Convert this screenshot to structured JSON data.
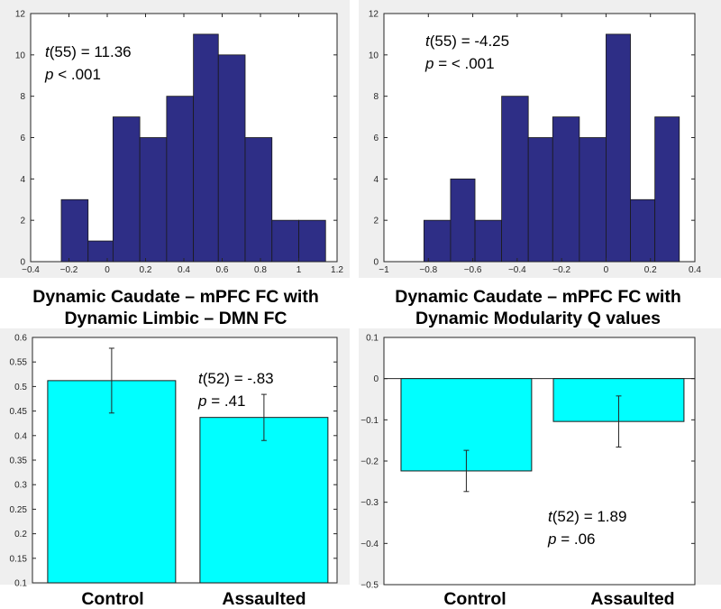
{
  "colors": {
    "histogram_fill": "#2e2e86",
    "bar_fill": "#00ffff",
    "panel_background": "#efefef"
  },
  "chart_data": [
    {
      "id": "hist-left",
      "type": "bar",
      "subtype": "histogram",
      "stat_line1": {
        "t_label": "t",
        "t_rest": "(55) = 11.36"
      },
      "stat_line2": {
        "p_label": "p",
        "p_rest": " < .001"
      },
      "caption": [
        "Dynamic Caudate – mPFC FC with",
        "Dynamic Limbic – DMN FC"
      ],
      "xlim": [
        -0.4,
        1.2
      ],
      "ylim": [
        0,
        12
      ],
      "xticks": [
        -0.4,
        -0.2,
        0,
        0.2,
        0.4,
        0.6,
        0.8,
        1,
        1.2
      ],
      "xtick_labels": [
        "−0.4",
        "−0.2",
        "0",
        "0.2",
        "0.4",
        "0.6",
        "0.8",
        "1",
        "1.2"
      ],
      "yticks": [
        0,
        2,
        4,
        6,
        8,
        10,
        12
      ],
      "ytick_labels": [
        "0",
        "2",
        "4",
        "6",
        "8",
        "10",
        "12"
      ],
      "bins": [
        {
          "start": -0.24,
          "end": -0.1,
          "count": 3
        },
        {
          "start": -0.1,
          "end": 0.03,
          "count": 1
        },
        {
          "start": 0.03,
          "end": 0.17,
          "count": 7
        },
        {
          "start": 0.17,
          "end": 0.31,
          "count": 6
        },
        {
          "start": 0.31,
          "end": 0.45,
          "count": 8
        },
        {
          "start": 0.45,
          "end": 0.58,
          "count": 11
        },
        {
          "start": 0.58,
          "end": 0.72,
          "count": 10
        },
        {
          "start": 0.72,
          "end": 0.86,
          "count": 6
        },
        {
          "start": 0.86,
          "end": 1.0,
          "count": 2
        },
        {
          "start": 1.0,
          "end": 1.14,
          "count": 2
        }
      ]
    },
    {
      "id": "hist-right",
      "type": "bar",
      "subtype": "histogram",
      "stat_line1": {
        "t_label": "t",
        "t_rest": "(55) = -4.25"
      },
      "stat_line2": {
        "p_label": "p",
        "p_rest": " = < .001"
      },
      "caption": [
        "Dynamic Caudate – mPFC FC with",
        "Dynamic Modularity Q values"
      ],
      "xlim": [
        -1,
        0.4
      ],
      "ylim": [
        0,
        12
      ],
      "xticks": [
        -1,
        -0.8,
        -0.6,
        -0.4,
        -0.2,
        0,
        0.2,
        0.4
      ],
      "xtick_labels": [
        "−1",
        "−0.8",
        "−0.6",
        "−0.4",
        "−0.2",
        "0",
        "0.2",
        "0.4"
      ],
      "yticks": [
        0,
        2,
        4,
        6,
        8,
        10,
        12
      ],
      "ytick_labels": [
        "0",
        "2",
        "4",
        "6",
        "8",
        "10",
        "12"
      ],
      "bins": [
        {
          "start": -0.82,
          "end": -0.7,
          "count": 2
        },
        {
          "start": -0.7,
          "end": -0.59,
          "count": 4
        },
        {
          "start": -0.59,
          "end": -0.47,
          "count": 2
        },
        {
          "start": -0.47,
          "end": -0.35,
          "count": 8
        },
        {
          "start": -0.35,
          "end": -0.24,
          "count": 6
        },
        {
          "start": -0.24,
          "end": -0.12,
          "count": 7
        },
        {
          "start": -0.12,
          "end": -0.0,
          "count": 6
        },
        {
          "start": -0.0,
          "end": 0.11,
          "count": 11
        },
        {
          "start": 0.11,
          "end": 0.22,
          "count": 3
        },
        {
          "start": 0.22,
          "end": 0.33,
          "count": 7
        }
      ]
    },
    {
      "id": "bar-left",
      "type": "bar",
      "stat_line1": {
        "t_label": "t",
        "t_rest": "(52) = -.83"
      },
      "stat_line2": {
        "p_label": "p",
        "p_rest": " = .41"
      },
      "categories": [
        "Control",
        "Assaulted"
      ],
      "values": [
        0.512,
        0.437
      ],
      "errors": [
        0.066,
        0.047
      ],
      "ylim": [
        0.1,
        0.6
      ],
      "yticks": [
        0.1,
        0.15,
        0.2,
        0.25,
        0.3,
        0.35,
        0.4,
        0.45,
        0.5,
        0.55,
        0.6
      ],
      "ytick_labels": [
        "0.1",
        "0.15",
        "0.2",
        "0.25",
        "0.3",
        "0.35",
        "0.4",
        "0.45",
        "0.5",
        "0.55",
        "0.6"
      ]
    },
    {
      "id": "bar-right",
      "type": "bar",
      "stat_line1": {
        "t_label": "t",
        "t_rest": "(52) = 1.89"
      },
      "stat_line2": {
        "p_label": "p",
        "p_rest": " = .06"
      },
      "categories": [
        "Control",
        "Assaulted"
      ],
      "values": [
        -0.224,
        -0.104
      ],
      "errors": [
        0.05,
        0.062
      ],
      "ylim": [
        -0.5,
        0.1
      ],
      "yticks": [
        -0.5,
        -0.4,
        -0.3,
        -0.2,
        -0.1,
        0,
        0.1
      ],
      "ytick_labels": [
        "−0.5",
        "−0.4",
        "−0.3",
        "−0.2",
        "−0.1",
        "0",
        "0.1"
      ]
    }
  ]
}
